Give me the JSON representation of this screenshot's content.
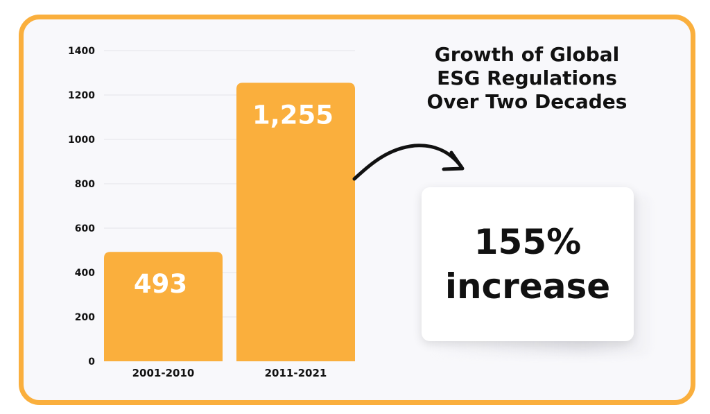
{
  "colors": {
    "accent": "#FAAF3D",
    "background": "#F8F8FB",
    "text": "#111111",
    "gridline": "#E3E3E8"
  },
  "chart_data": {
    "type": "bar",
    "title": "Growth of Global\nESG Regulations\nOver Two Decades",
    "categories": [
      "2001-2010",
      "2011-2021"
    ],
    "values": [
      493,
      1255
    ],
    "data_labels": [
      "493",
      "1,255"
    ],
    "yticks": [
      "0",
      "200",
      "400",
      "600",
      "800",
      "1000",
      "1200",
      "1400"
    ],
    "ylim": [
      0,
      1400
    ],
    "grid": true,
    "xlabel": "",
    "ylabel": ""
  },
  "callout": {
    "line1": "155%",
    "line2": "increase"
  }
}
